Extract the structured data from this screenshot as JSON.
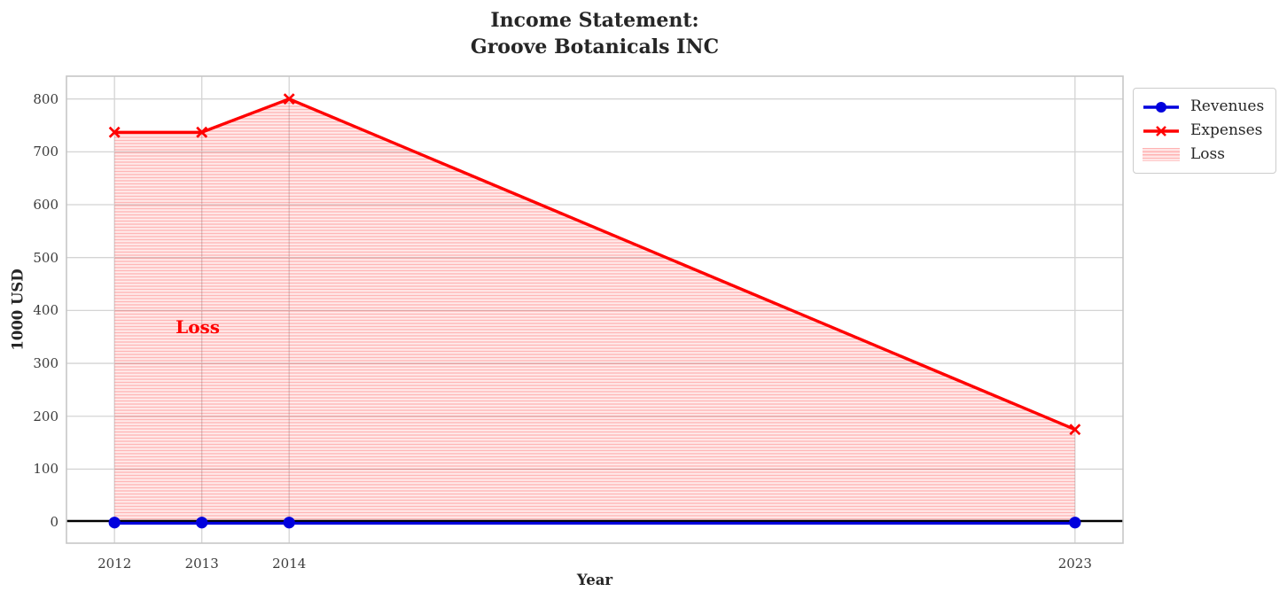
{
  "chart_data": {
    "type": "line",
    "title": "Income Statement:\nGroove Botanicals INC",
    "title_lines": [
      "Income Statement:",
      "Groove Botanicals INC"
    ],
    "xlabel": "Year",
    "ylabel": "1000 USD",
    "x": [
      2012,
      2013,
      2014,
      2023
    ],
    "series": [
      {
        "name": "Revenues",
        "values": [
          0,
          0,
          0,
          0
        ],
        "color": "#0000dd",
        "marker": "circle"
      },
      {
        "name": "Expenses",
        "values": [
          737,
          737,
          800,
          175
        ],
        "color": "#ff0000",
        "marker": "x"
      }
    ],
    "fill": {
      "label": "Loss",
      "between": [
        "Expenses",
        "Revenues"
      ],
      "base_color": "rgba(255,0,0,0.08)",
      "hatch_color": "rgba(255,0,0,0.22)",
      "hatch": "-"
    },
    "annotation": {
      "text": "Loss",
      "x": 2012.7,
      "y": 368,
      "color": "#ff0000"
    },
    "xticks": [
      2012,
      2013,
      2014,
      2023
    ],
    "yticks": [
      0,
      100,
      200,
      300,
      400,
      500,
      600,
      700,
      800
    ],
    "xlim": [
      2011.45,
      2023.55
    ],
    "ylim": [
      -40,
      843
    ],
    "grid": true,
    "grid_color": "#d4d4d4",
    "spine_color": "#c6c6c6",
    "zero_line_color": "#000000",
    "legend_position": "outside-upper-right"
  }
}
